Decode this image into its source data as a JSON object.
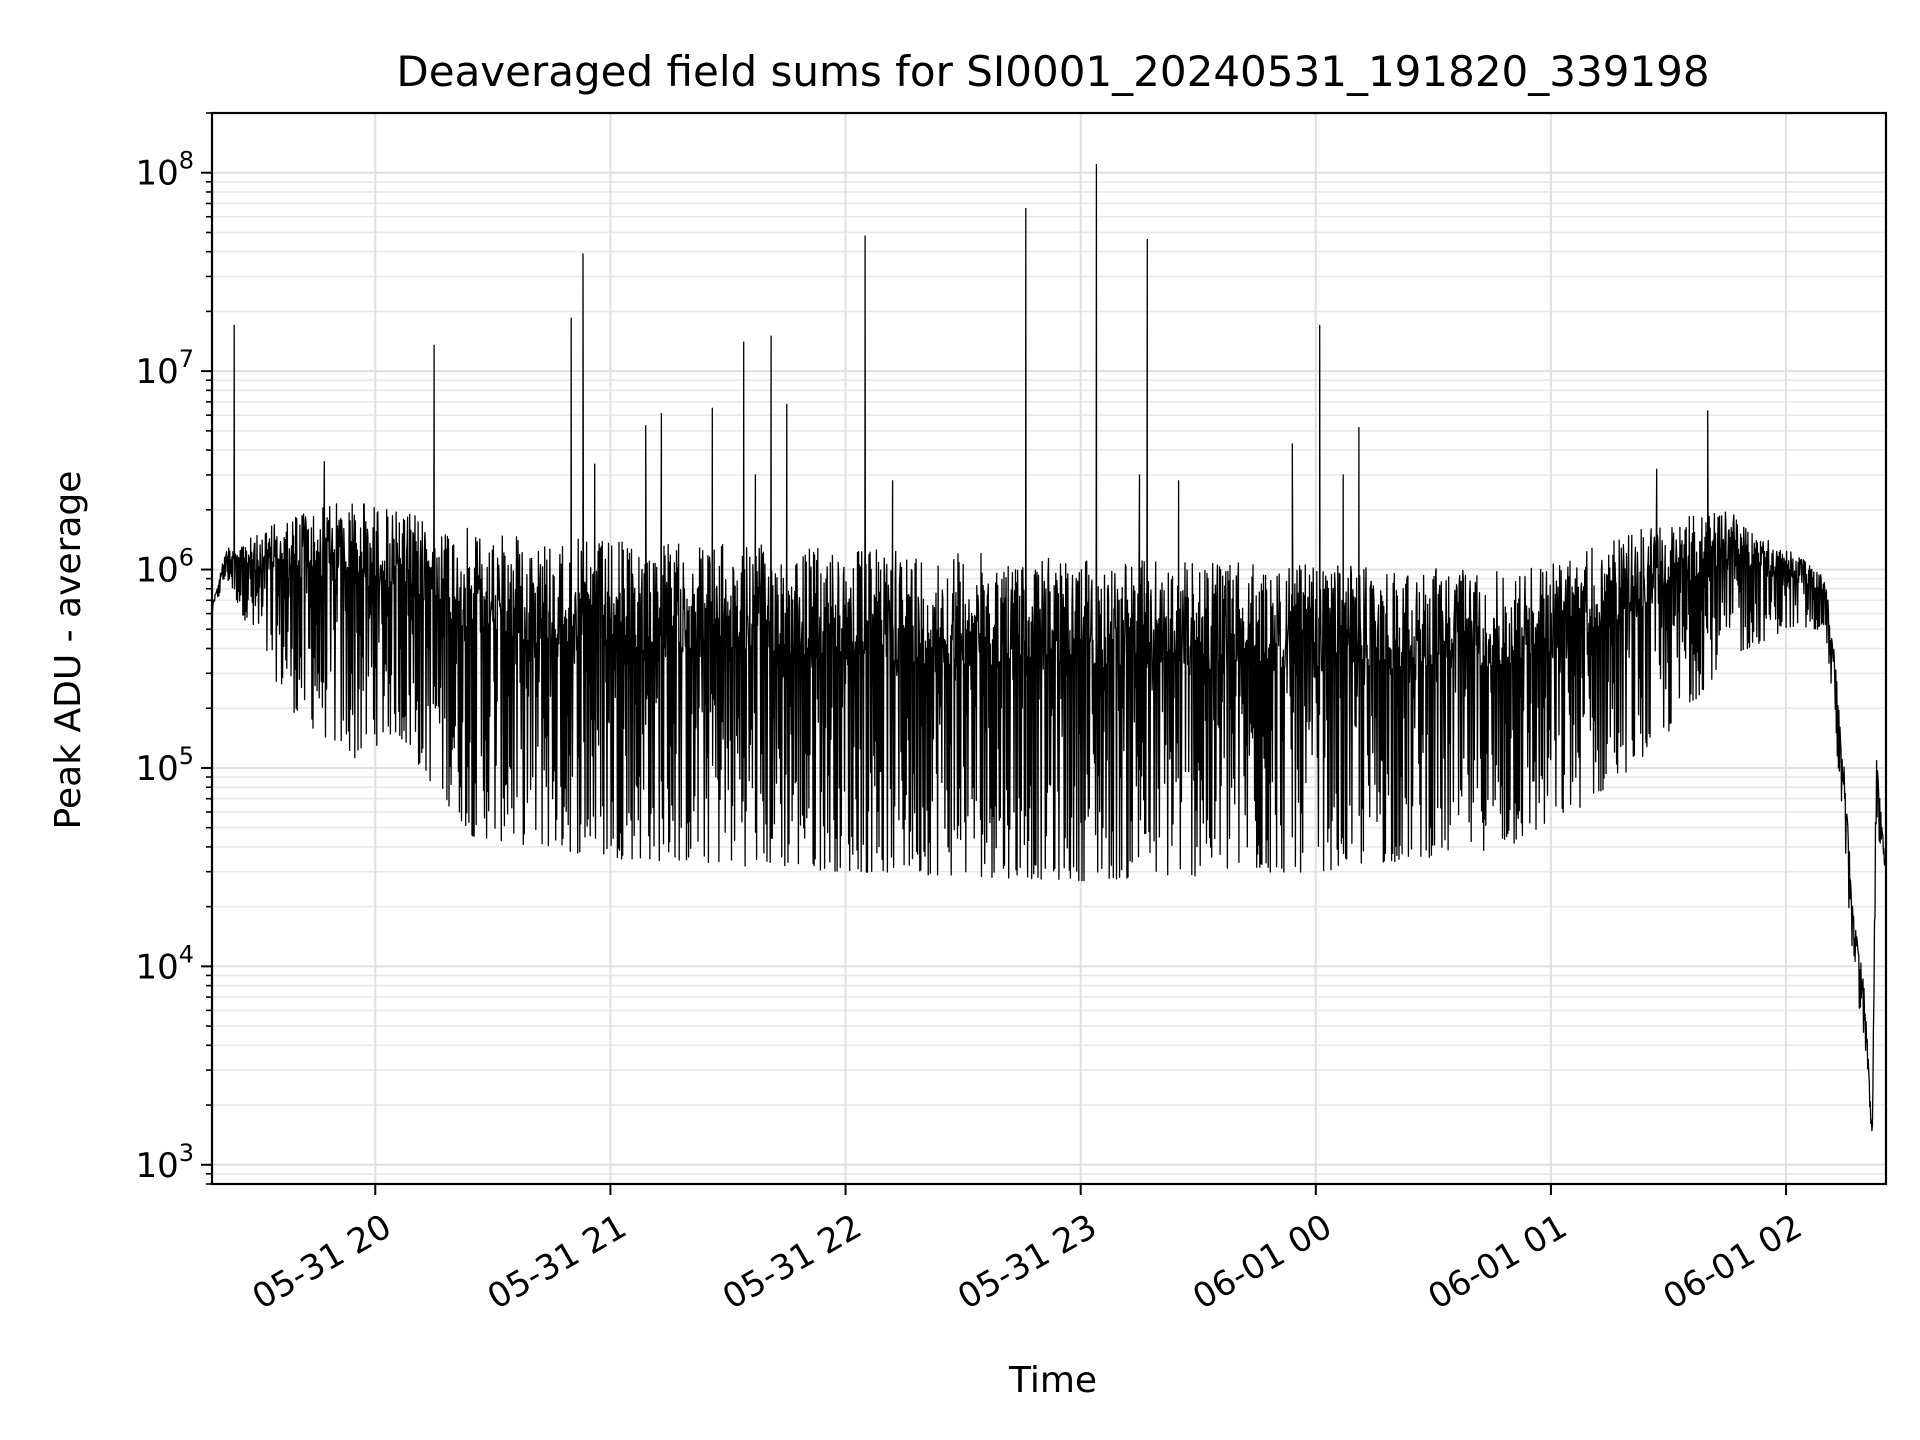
{
  "chart_data": {
    "type": "line",
    "title": "Deaveraged field sums for SI0001_20240531_191820_339198",
    "xlabel": "Time",
    "ylabel": "Peak ADU - average",
    "yscale": "log",
    "ylim": [
      800,
      200000000
    ],
    "xlim": [
      "2024-05-31 19:18:20",
      "2024-06-01 02:25:30"
    ],
    "grid": "major and minor",
    "line_color": "#000000",
    "x_ticks": [
      {
        "time": "2024-05-31 20:00",
        "label": "05-31 20"
      },
      {
        "time": "2024-05-31 21:00",
        "label": "05-31 21"
      },
      {
        "time": "2024-05-31 22:00",
        "label": "05-31 22"
      },
      {
        "time": "2024-05-31 23:00",
        "label": "05-31 23"
      },
      {
        "time": "2024-06-01 00:00",
        "label": "06-01 00"
      },
      {
        "time": "2024-06-01 01:00",
        "label": "06-01 01"
      },
      {
        "time": "2024-06-01 02:00",
        "label": "06-01 02"
      }
    ],
    "y_ticks": [
      {
        "value": 1000,
        "base": "10",
        "exp": "3"
      },
      {
        "value": 10000,
        "base": "10",
        "exp": "4"
      },
      {
        "value": 100000,
        "base": "10",
        "exp": "5"
      },
      {
        "value": 1000000,
        "base": "10",
        "exp": "6"
      },
      {
        "value": 10000000,
        "base": "10",
        "exp": "7"
      },
      {
        "value": 100000000,
        "base": "10",
        "exp": "8"
      }
    ],
    "series": [
      {
        "style": "dense oscillating line between a lower envelope and an upper envelope",
        "upper_envelope": [
          {
            "t": "2024-05-31 19:18:20",
            "v": 650000
          },
          {
            "t": "2024-05-31 19:22",
            "v": 1300000
          },
          {
            "t": "2024-05-31 19:30",
            "v": 1500000
          },
          {
            "t": "2024-05-31 19:40",
            "v": 2000000
          },
          {
            "t": "2024-05-31 19:55",
            "v": 2300000
          },
          {
            "t": "2024-05-31 20:05",
            "v": 2000000
          },
          {
            "t": "2024-05-31 20:15",
            "v": 1800000
          },
          {
            "t": "2024-05-31 20:30",
            "v": 1500000
          },
          {
            "t": "2024-05-31 21:00",
            "v": 1400000
          },
          {
            "t": "2024-05-31 22:00",
            "v": 1300000
          },
          {
            "t": "2024-05-31 23:00",
            "v": 1150000
          },
          {
            "t": "2024-06-01 00:00",
            "v": 1050000
          },
          {
            "t": "2024-06-01 00:50",
            "v": 1000000
          },
          {
            "t": "2024-06-01 01:00",
            "v": 1100000
          },
          {
            "t": "2024-06-01 01:15",
            "v": 1400000
          },
          {
            "t": "2024-06-01 01:30",
            "v": 1800000
          },
          {
            "t": "2024-06-01 01:45",
            "v": 2000000
          },
          {
            "t": "2024-06-01 01:55",
            "v": 1500000
          },
          {
            "t": "2024-06-01 02:05",
            "v": 1100000
          },
          {
            "t": "2024-06-01 02:10",
            "v": 900000
          },
          {
            "t": "2024-06-01 02:12",
            "v": 450000
          },
          {
            "t": "2024-06-01 02:15",
            "v": 100000
          },
          {
            "t": "2024-06-01 02:17",
            "v": 20000
          },
          {
            "t": "2024-06-01 02:20",
            "v": 8000
          },
          {
            "t": "2024-06-01 02:22",
            "v": 1400
          },
          {
            "t": "2024-06-01 02:23",
            "v": 120000
          },
          {
            "t": "2024-06-01 02:25:30",
            "v": 30000
          }
        ],
        "lower_envelope": [
          {
            "t": "2024-05-31 19:18:20",
            "v": 600000
          },
          {
            "t": "2024-05-31 19:22",
            "v": 900000
          },
          {
            "t": "2024-05-31 19:30",
            "v": 400000
          },
          {
            "t": "2024-05-31 19:40",
            "v": 180000
          },
          {
            "t": "2024-05-31 19:55",
            "v": 110000
          },
          {
            "t": "2024-05-31 20:05",
            "v": 150000
          },
          {
            "t": "2024-05-31 20:15",
            "v": 80000
          },
          {
            "t": "2024-05-31 20:25",
            "v": 45000
          },
          {
            "t": "2024-05-31 21:00",
            "v": 35000
          },
          {
            "t": "2024-05-31 22:00",
            "v": 30000
          },
          {
            "t": "2024-05-31 23:00",
            "v": 27000
          },
          {
            "t": "2024-06-01 00:00",
            "v": 30000
          },
          {
            "t": "2024-06-01 00:50",
            "v": 40000
          },
          {
            "t": "2024-06-01 01:00",
            "v": 50000
          },
          {
            "t": "2024-06-01 01:15",
            "v": 80000
          },
          {
            "t": "2024-06-01 01:30",
            "v": 150000
          },
          {
            "t": "2024-06-01 01:45",
            "v": 350000
          },
          {
            "t": "2024-06-01 02:00",
            "v": 500000
          },
          {
            "t": "2024-06-01 02:10",
            "v": 500000
          },
          {
            "t": "2024-06-01 02:12",
            "v": 200000
          },
          {
            "t": "2024-06-01 02:15",
            "v": 40000
          },
          {
            "t": "2024-06-01 02:17",
            "v": 10000
          },
          {
            "t": "2024-06-01 02:20",
            "v": 4000
          },
          {
            "t": "2024-06-01 02:22",
            "v": 1300
          },
          {
            "t": "2024-06-01 02:23",
            "v": 50000
          },
          {
            "t": "2024-06-01 02:25:30",
            "v": 30000
          }
        ],
        "spikes": [
          {
            "t": "2024-05-31 19:24",
            "v": 17000000
          },
          {
            "t": "2024-05-31 19:47",
            "v": 3500000
          },
          {
            "t": "2024-05-31 20:15",
            "v": 13500000
          },
          {
            "t": "2024-05-31 20:50",
            "v": 18500000
          },
          {
            "t": "2024-05-31 20:53",
            "v": 39000000
          },
          {
            "t": "2024-05-31 20:56",
            "v": 3400000
          },
          {
            "t": "2024-05-31 21:09",
            "v": 5300000
          },
          {
            "t": "2024-05-31 21:13",
            "v": 6100000
          },
          {
            "t": "2024-05-31 21:26",
            "v": 6500000
          },
          {
            "t": "2024-05-31 21:34",
            "v": 14000000
          },
          {
            "t": "2024-05-31 21:41",
            "v": 15000000
          },
          {
            "t": "2024-05-31 21:37",
            "v": 3000000
          },
          {
            "t": "2024-05-31 21:45",
            "v": 6800000
          },
          {
            "t": "2024-05-31 22:05",
            "v": 48000000
          },
          {
            "t": "2024-05-31 22:12",
            "v": 2800000
          },
          {
            "t": "2024-05-31 22:46",
            "v": 66000000
          },
          {
            "t": "2024-05-31 23:04",
            "v": 110000000
          },
          {
            "t": "2024-05-31 23:17",
            "v": 46000000
          },
          {
            "t": "2024-05-31 23:15",
            "v": 3000000
          },
          {
            "t": "2024-05-31 23:25",
            "v": 2800000
          },
          {
            "t": "2024-05-31 23:54",
            "v": 4300000
          },
          {
            "t": "2024-06-01 00:01",
            "v": 17000000
          },
          {
            "t": "2024-06-01 00:11",
            "v": 5200000
          },
          {
            "t": "2024-06-01 00:07",
            "v": 3000000
          },
          {
            "t": "2024-06-01 01:27",
            "v": 3200000
          },
          {
            "t": "2024-06-01 01:40",
            "v": 6300000
          }
        ]
      }
    ]
  }
}
